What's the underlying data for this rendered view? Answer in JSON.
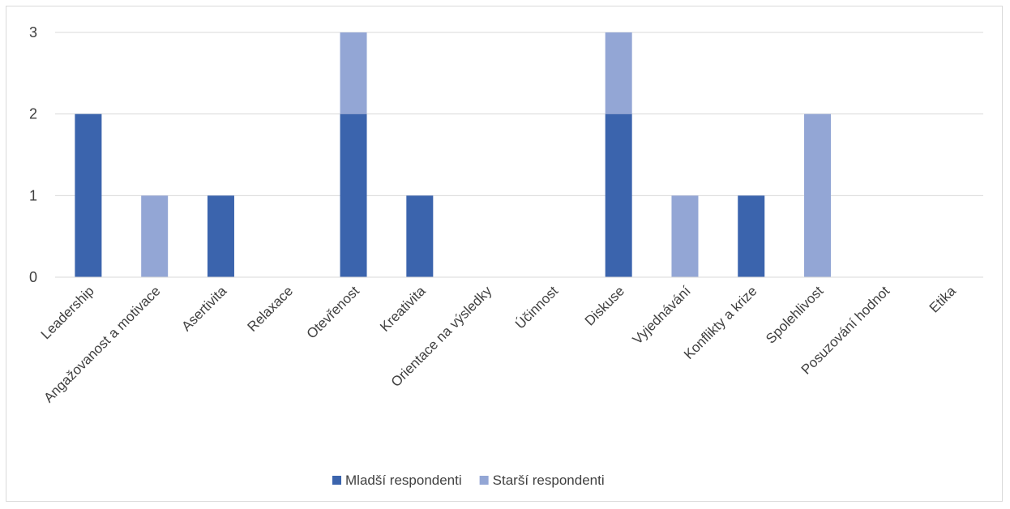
{
  "chart_data": {
    "type": "bar",
    "stacked": true,
    "title": "",
    "xlabel": "",
    "ylabel": "",
    "ylim": [
      0,
      3
    ],
    "yticks": [
      0,
      1,
      2,
      3
    ],
    "grid": true,
    "legend_position": "bottom",
    "categories": [
      "Leadership",
      "Angažovanost a motivace",
      "Asertivita",
      "Relaxace",
      "Otevřenost",
      "Kreativita",
      "Orientace na výsledky",
      "Účinnost",
      "Diskuse",
      "Vyjednávání",
      "Konflikty a krize",
      "Spolehlivost",
      "Posuzování hodnot",
      "Etika"
    ],
    "series": [
      {
        "name": "Mladší respondenti",
        "color": "#3b64ad",
        "values": [
          2,
          0,
          1,
          0,
          2,
          1,
          0,
          0,
          2,
          0,
          1,
          0,
          0,
          0
        ]
      },
      {
        "name": "Starší respondenti",
        "color": "#93a6d5",
        "values": [
          0,
          1,
          0,
          0,
          1,
          0,
          0,
          0,
          1,
          1,
          0,
          2,
          0,
          0
        ]
      }
    ]
  }
}
